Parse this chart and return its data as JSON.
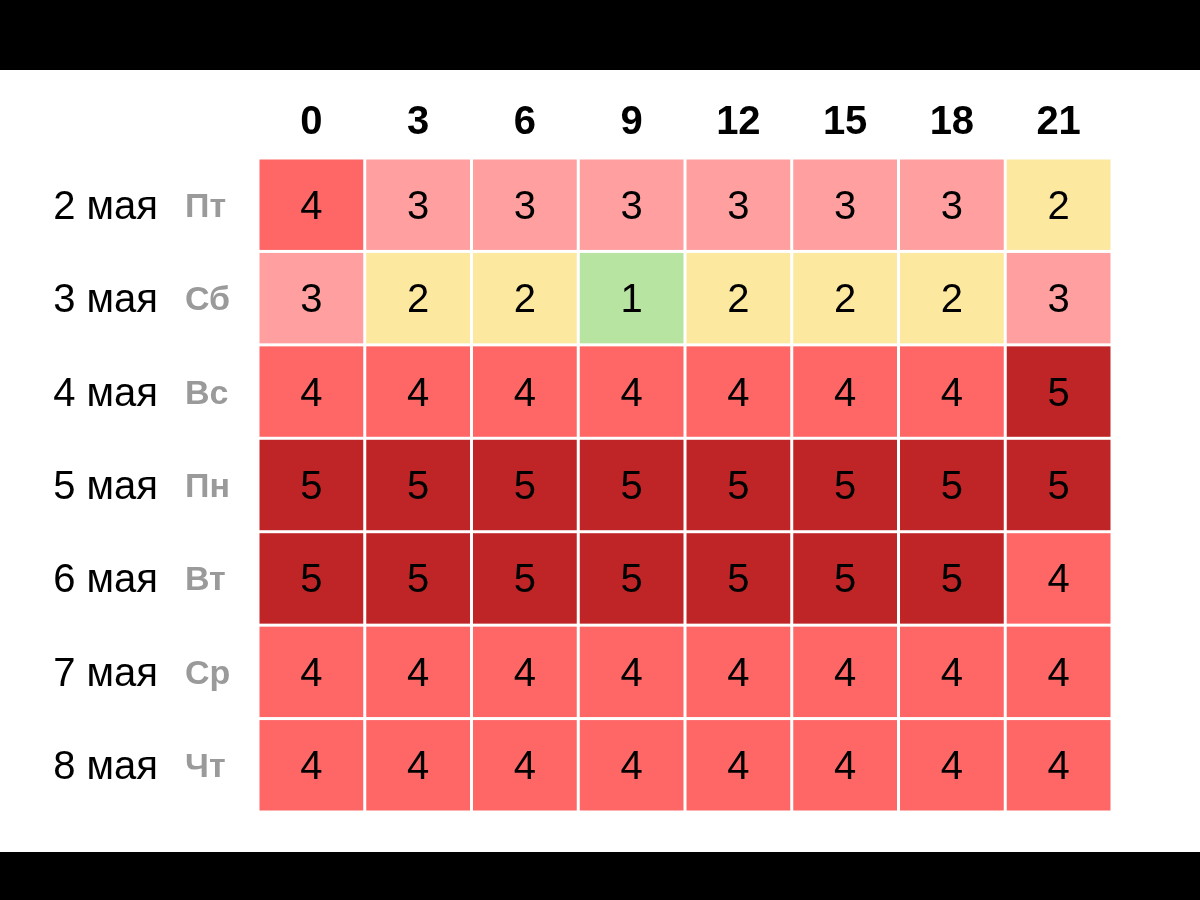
{
  "chart_data": {
    "type": "heatmap",
    "categories": [
      "0",
      "3",
      "6",
      "9",
      "12",
      "15",
      "18",
      "21"
    ],
    "y_categories": [
      "2 мая",
      "3 мая",
      "4 мая",
      "5 мая",
      "6 мая",
      "7 мая",
      "8 мая"
    ],
    "y2_categories": [
      "Пт",
      "Сб",
      "Вс",
      "Пн",
      "Вт",
      "Ср",
      "Чт"
    ],
    "cells": [
      [
        4,
        3,
        3,
        3,
        3,
        3,
        3,
        2
      ],
      [
        3,
        2,
        2,
        1,
        2,
        2,
        2,
        3
      ],
      [
        4,
        4,
        4,
        4,
        4,
        4,
        4,
        5
      ],
      [
        5,
        5,
        5,
        5,
        5,
        5,
        5,
        5
      ],
      [
        5,
        5,
        5,
        5,
        5,
        5,
        5,
        4
      ],
      [
        4,
        4,
        4,
        4,
        4,
        4,
        4,
        4
      ],
      [
        4,
        4,
        4,
        4,
        4,
        4,
        4,
        4
      ]
    ],
    "data_labels": true
  }
}
